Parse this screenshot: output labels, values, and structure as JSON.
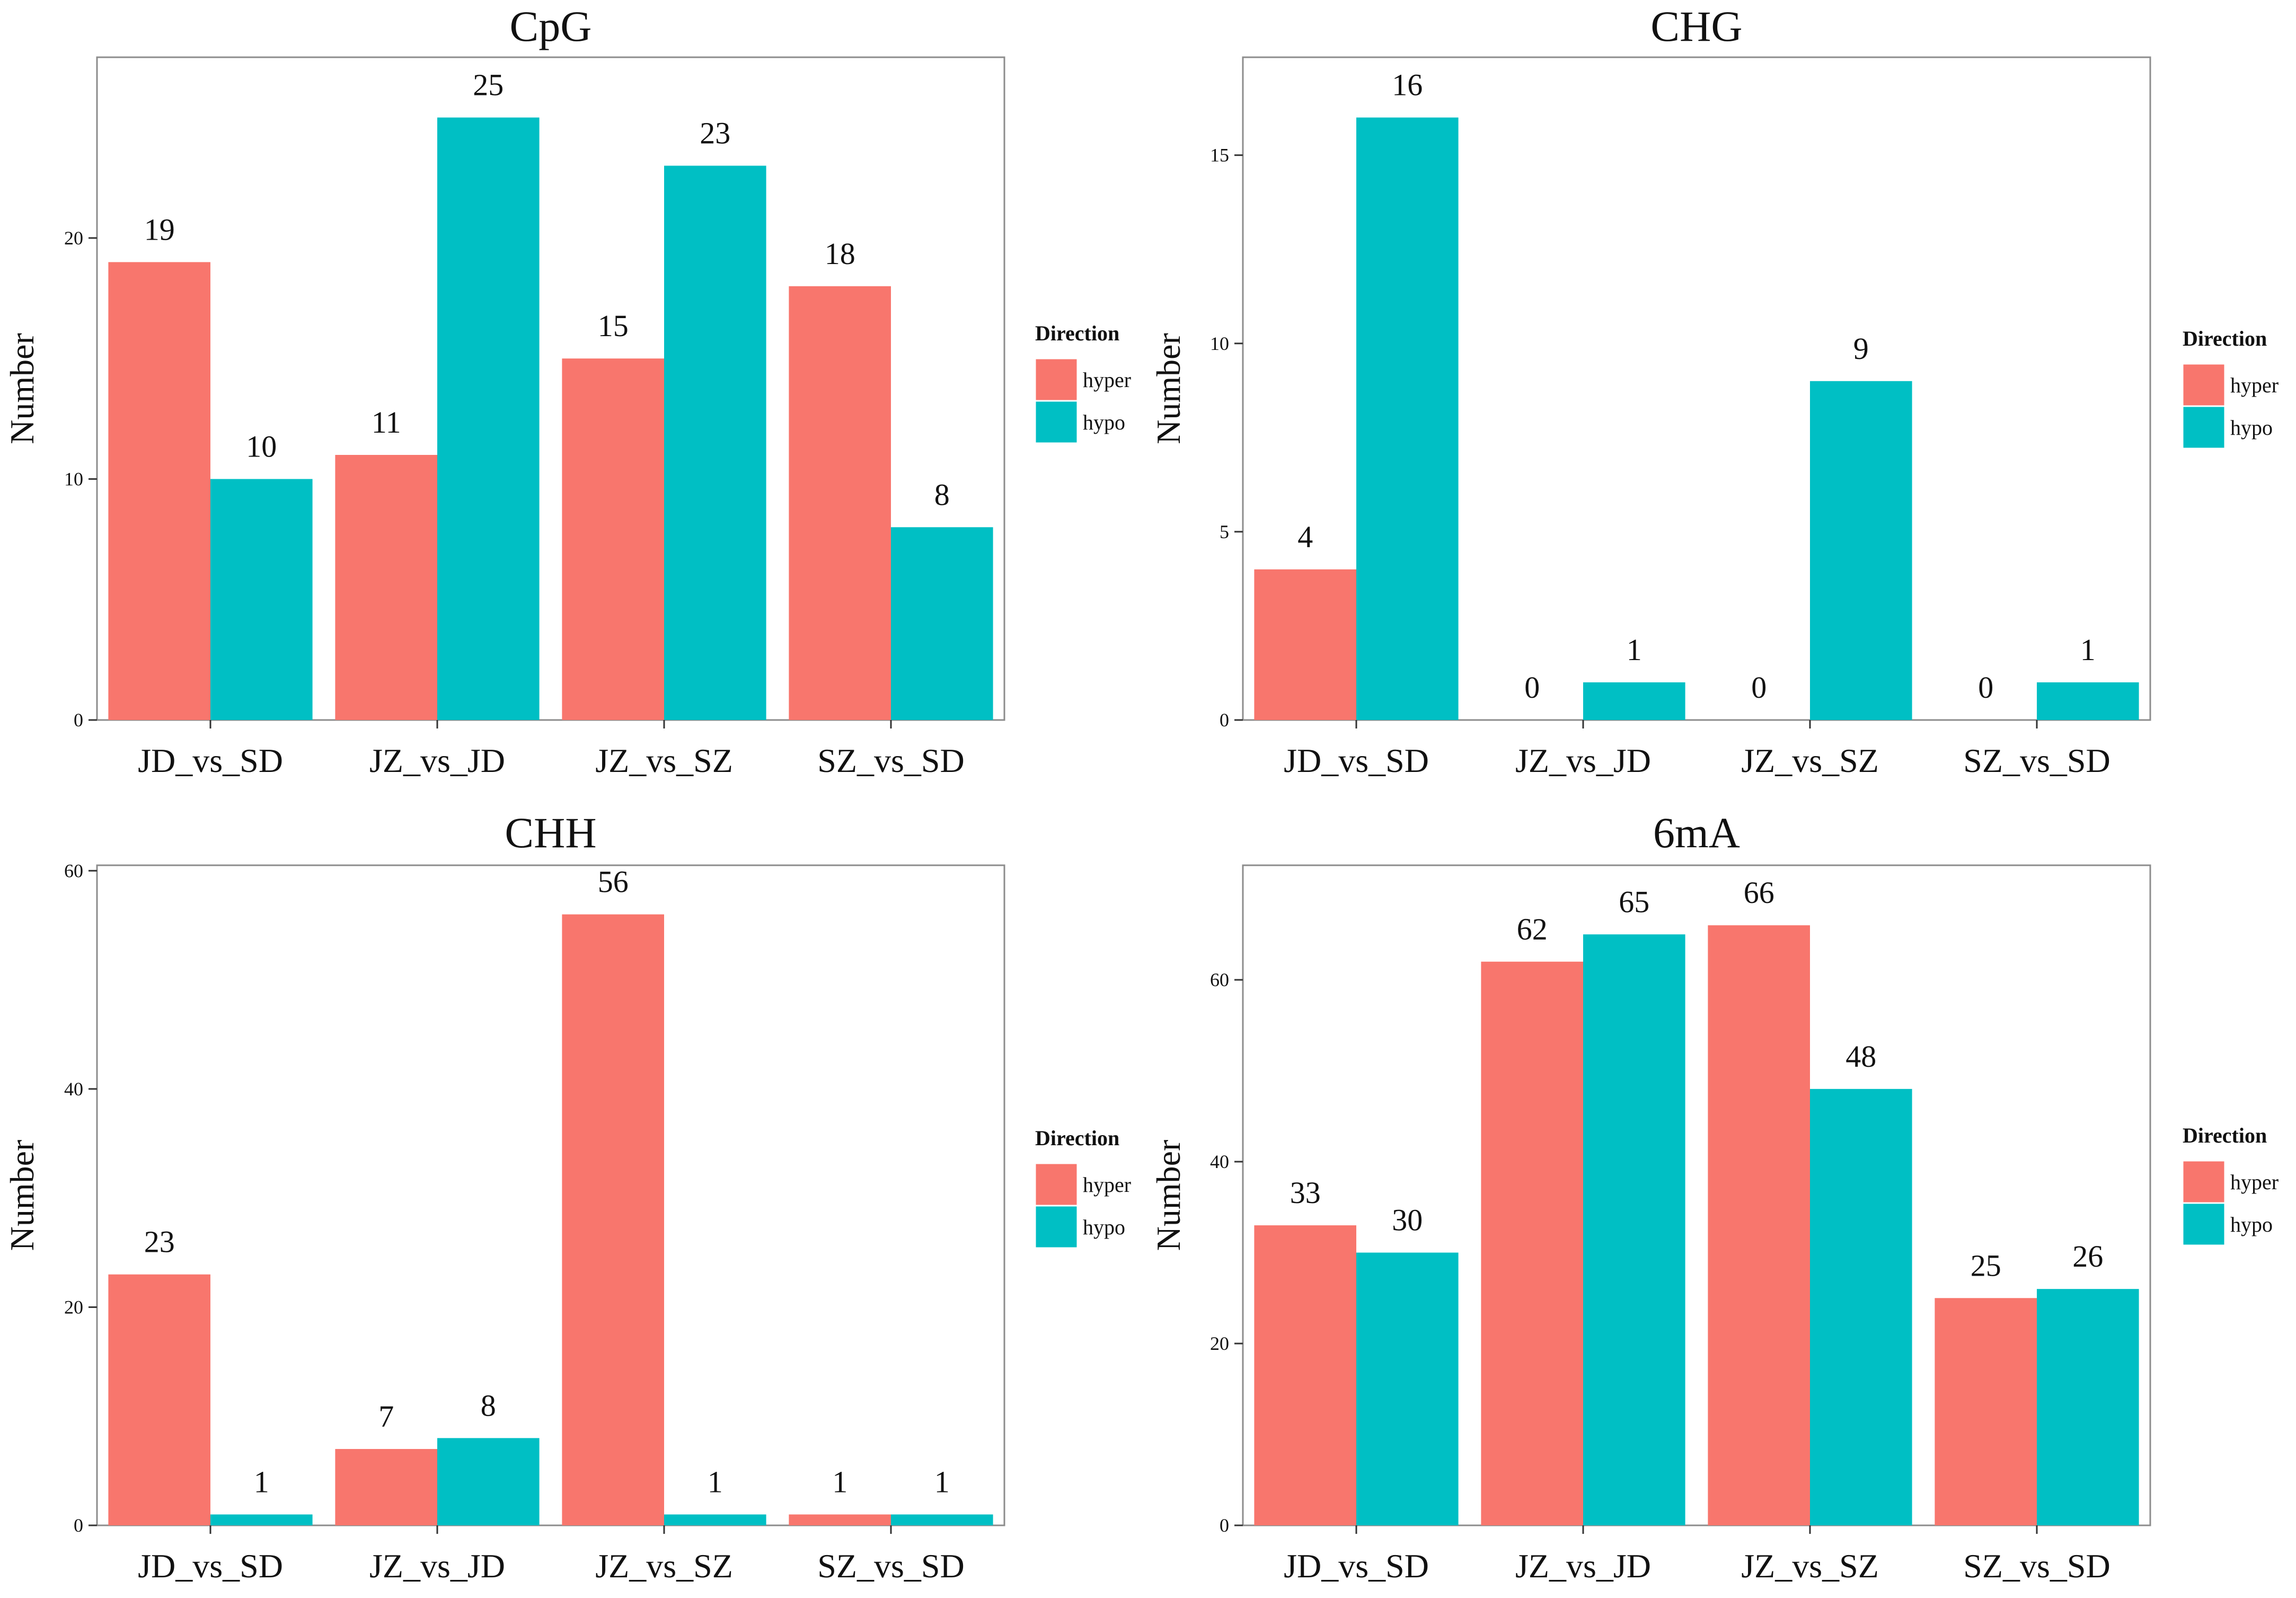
{
  "colors": {
    "hyper": "#F8766D",
    "hypo": "#00BFC4",
    "frame": "#8c8c8c",
    "tick": "#333333"
  },
  "chart_data": [
    {
      "type": "bar",
      "title": "CpG",
      "xlabel": "",
      "ylabel": "Number",
      "categories": [
        "JD_vs_SD",
        "JZ_vs_JD",
        "JZ_vs_SZ",
        "SZ_vs_SD"
      ],
      "ylim": [
        0,
        27.5
      ],
      "yticks": [
        0,
        10,
        20
      ],
      "legend": {
        "title": "Direction",
        "position": "right",
        "labels": [
          "hyper",
          "hypo"
        ]
      },
      "series": [
        {
          "name": "hyper",
          "values": [
            19,
            11,
            15,
            18
          ],
          "labels": [
            "19",
            "11",
            "15",
            "18"
          ]
        },
        {
          "name": "hypo",
          "values": [
            10,
            25,
            23,
            8
          ],
          "labels": [
            "10",
            "25",
            "23",
            "8"
          ]
        }
      ]
    },
    {
      "type": "bar",
      "title": "CHG",
      "xlabel": "",
      "ylabel": "Number",
      "categories": [
        "JD_vs_SD",
        "JZ_vs_JD",
        "JZ_vs_SZ",
        "SZ_vs_SD"
      ],
      "ylim": [
        0,
        17.6
      ],
      "yticks": [
        0,
        5,
        10,
        15
      ],
      "legend": {
        "title": "Direction",
        "position": "right",
        "labels": [
          "hyper",
          "hypo"
        ]
      },
      "series": [
        {
          "name": "hyper",
          "values": [
            4,
            0,
            0,
            0
          ],
          "labels": [
            "4",
            "0",
            "0",
            "0"
          ]
        },
        {
          "name": "hypo",
          "values": [
            16,
            1,
            9,
            1
          ],
          "labels": [
            "16",
            "1",
            "9",
            "1"
          ]
        }
      ]
    },
    {
      "type": "bar",
      "title": "CHH",
      "xlabel": "",
      "ylabel": "Number",
      "categories": [
        "JD_vs_SD",
        "JZ_vs_JD",
        "JZ_vs_SZ",
        "SZ_vs_SD"
      ],
      "ylim": [
        0,
        60.5
      ],
      "yticks": [
        0,
        20,
        40,
        60
      ],
      "legend": {
        "title": "Direction",
        "position": "right",
        "labels": [
          "hyper",
          "hypo"
        ]
      },
      "series": [
        {
          "name": "hyper",
          "values": [
            23,
            7,
            56,
            1
          ],
          "labels": [
            "23",
            "7",
            "56",
            "1"
          ]
        },
        {
          "name": "hypo",
          "values": [
            1,
            8,
            1,
            1
          ],
          "labels": [
            "1",
            "8",
            "1",
            "1"
          ]
        }
      ]
    },
    {
      "type": "bar",
      "title": "6mA",
      "xlabel": "",
      "ylabel": "Number",
      "categories": [
        "JD_vs_SD",
        "JZ_vs_JD",
        "JZ_vs_SZ",
        "SZ_vs_SD"
      ],
      "ylim": [
        0,
        72.6
      ],
      "yticks": [
        0,
        20,
        40,
        60
      ],
      "legend": {
        "title": "Direction",
        "position": "right",
        "labels": [
          "hyper",
          "hypo"
        ]
      },
      "series": [
        {
          "name": "hyper",
          "values": [
            33,
            62,
            66,
            25
          ],
          "labels": [
            "33",
            "62",
            "66",
            "25"
          ]
        },
        {
          "name": "hypo",
          "values": [
            30,
            65,
            48,
            26
          ],
          "labels": [
            "30",
            "65",
            "48",
            "26"
          ]
        }
      ]
    }
  ]
}
